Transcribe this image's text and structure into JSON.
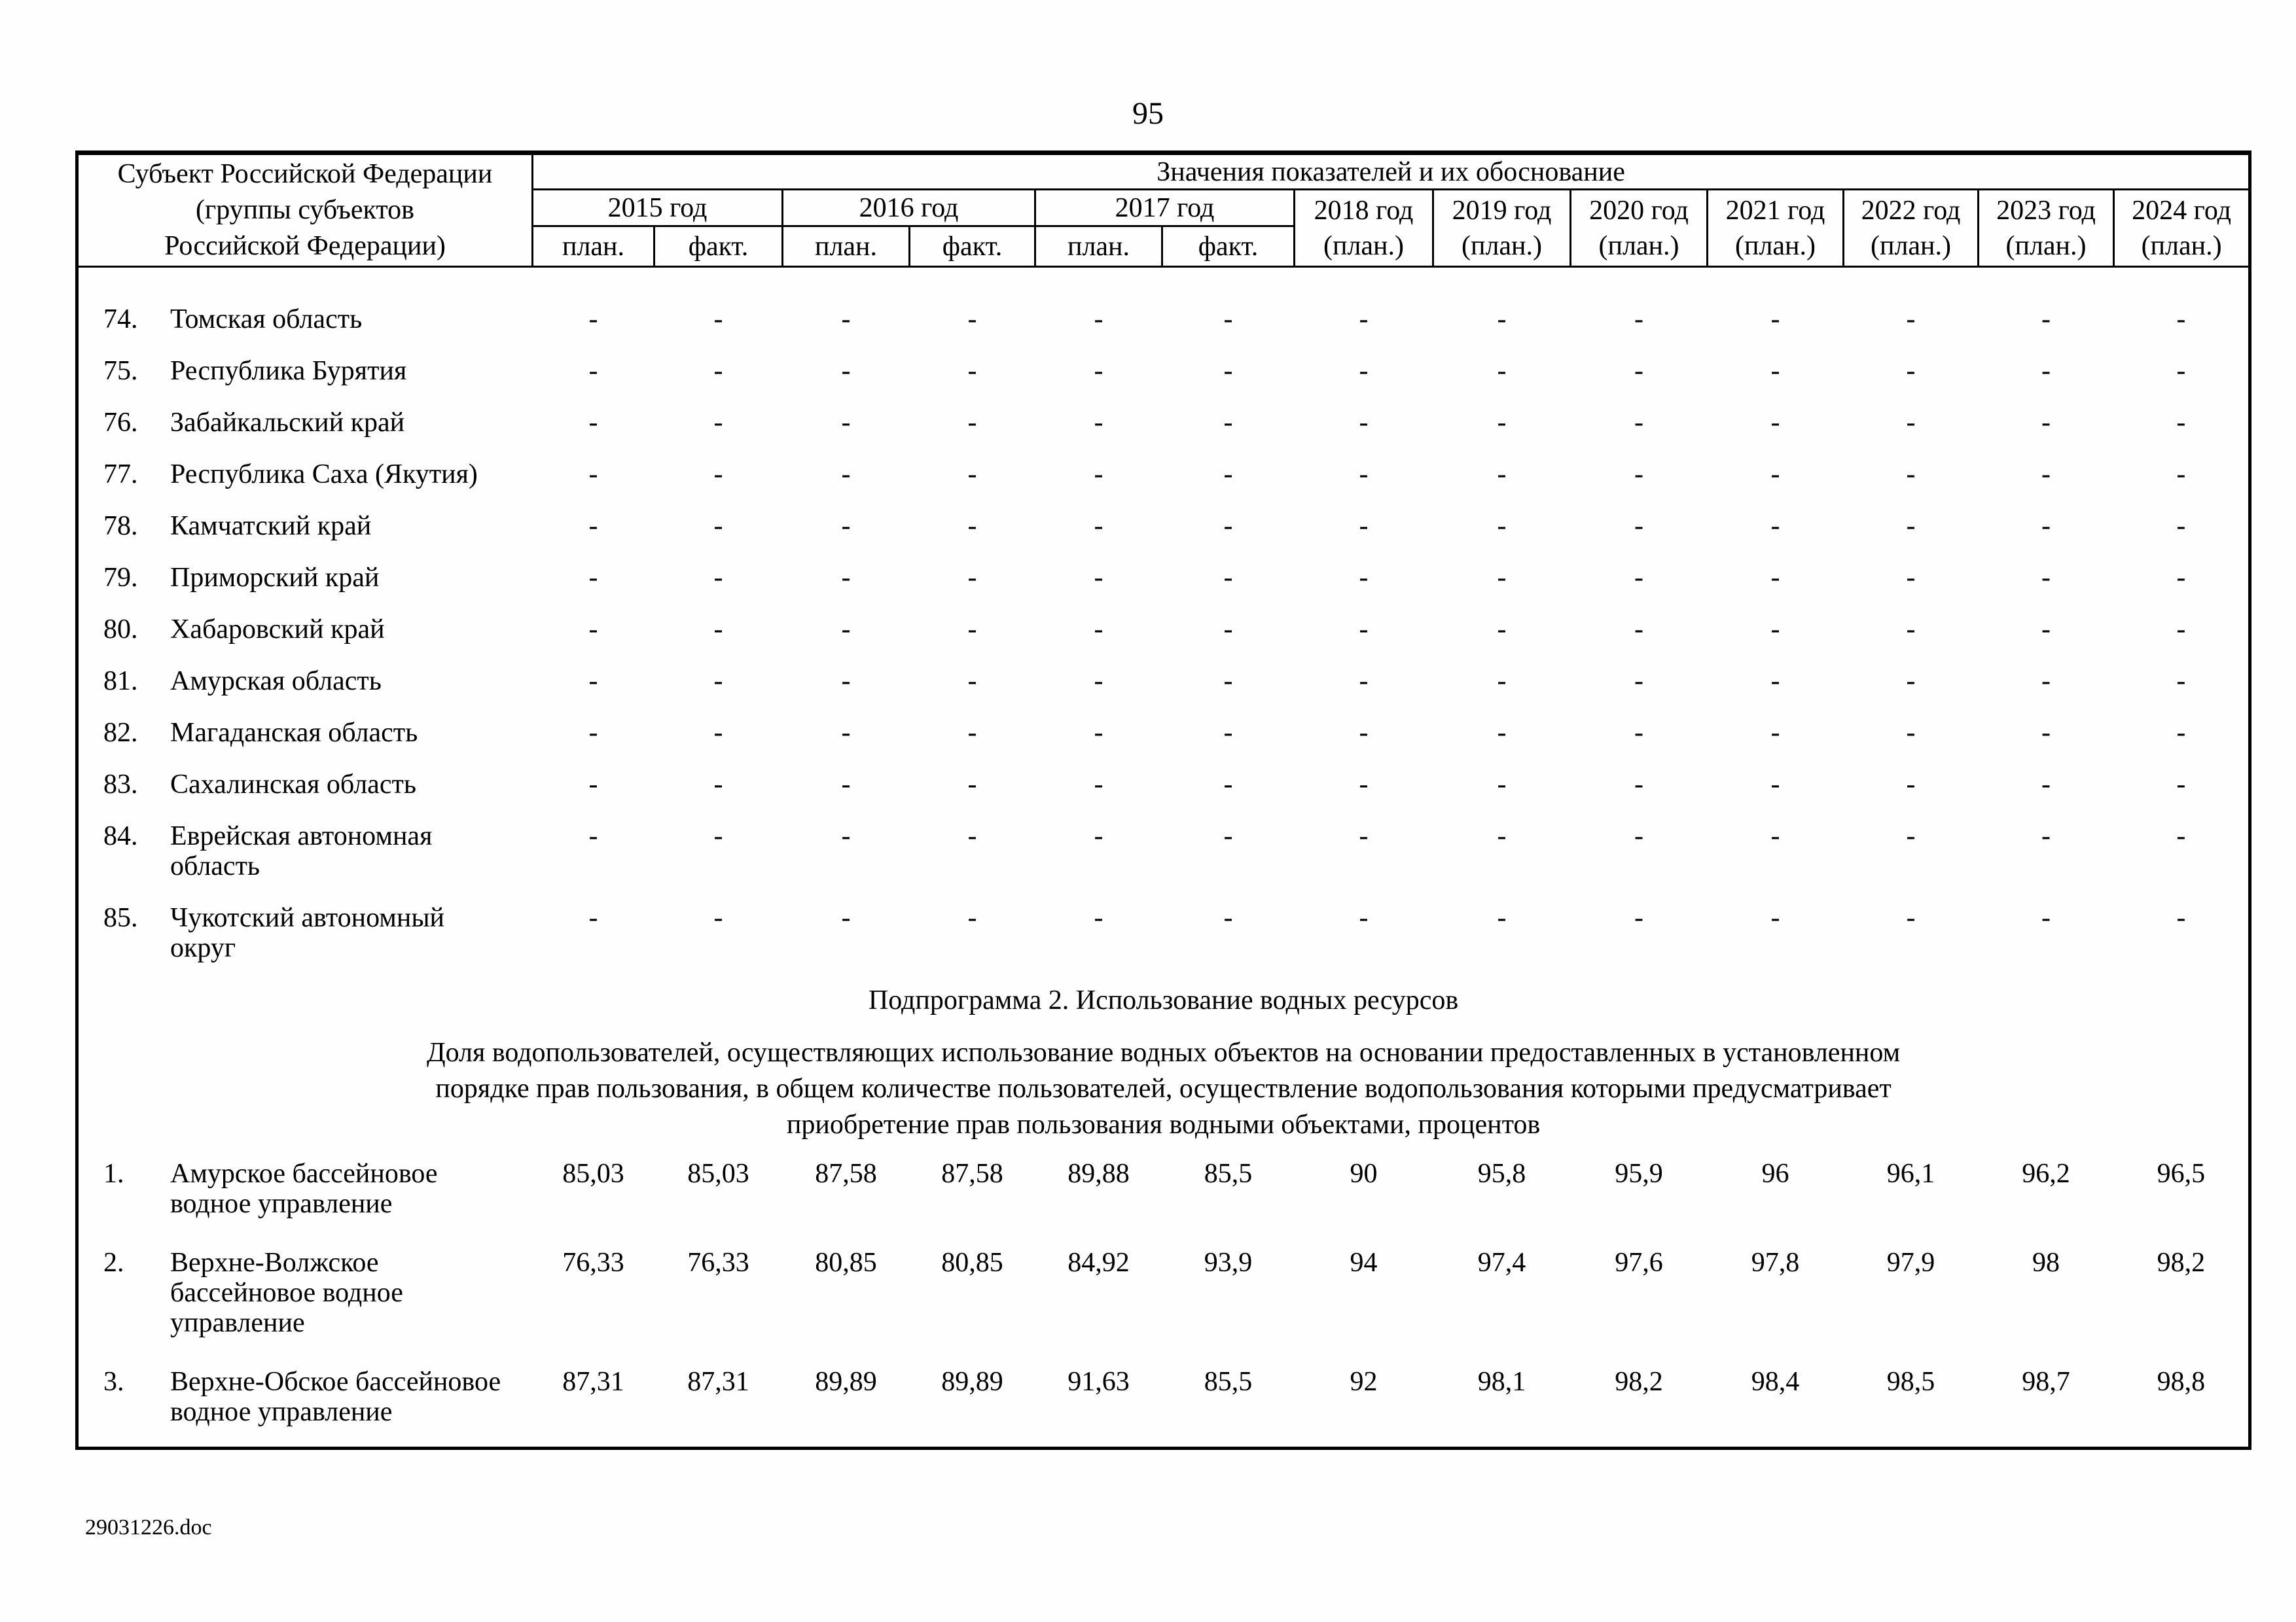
{
  "page": {
    "number": "95",
    "footer_filename": "29031226.doc"
  },
  "table": {
    "subject_header": "Субъект Российской Федерации\n(группы субъектов\nРоссийской Федерации)",
    "values_header": "Значения показателей и их обоснование",
    "year_groups": [
      {
        "label": "2015 год",
        "subs": [
          "план.",
          "факт."
        ]
      },
      {
        "label": "2016 год",
        "subs": [
          "план.",
          "факт."
        ]
      },
      {
        "label": "2017 год",
        "subs": [
          "план.",
          "факт."
        ]
      },
      {
        "label": "2018 год",
        "subs": [
          "(план.)"
        ]
      },
      {
        "label": "2019 год",
        "subs": [
          "(план.)"
        ]
      },
      {
        "label": "2020 год",
        "subs": [
          "(план.)"
        ]
      },
      {
        "label": "2021 год",
        "subs": [
          "(план.)"
        ]
      },
      {
        "label": "2022 год",
        "subs": [
          "(план.)"
        ]
      },
      {
        "label": "2023 год",
        "subs": [
          "(план.)"
        ]
      },
      {
        "label": "2024 год",
        "subs": [
          "(план.)"
        ]
      }
    ],
    "region_rows": [
      {
        "num": "74.",
        "name": "Томская область",
        "values": [
          "-",
          "-",
          "-",
          "-",
          "-",
          "-",
          "-",
          "-",
          "-",
          "-",
          "-",
          "-",
          "-"
        ]
      },
      {
        "num": "75.",
        "name": "Республика Бурятия",
        "values": [
          "-",
          "-",
          "-",
          "-",
          "-",
          "-",
          "-",
          "-",
          "-",
          "-",
          "-",
          "-",
          "-"
        ]
      },
      {
        "num": "76.",
        "name": "Забайкальский край",
        "values": [
          "-",
          "-",
          "-",
          "-",
          "-",
          "-",
          "-",
          "-",
          "-",
          "-",
          "-",
          "-",
          "-"
        ]
      },
      {
        "num": "77.",
        "name": "Республика Саха (Якутия)",
        "values": [
          "-",
          "-",
          "-",
          "-",
          "-",
          "-",
          "-",
          "-",
          "-",
          "-",
          "-",
          "-",
          "-"
        ]
      },
      {
        "num": "78.",
        "name": "Камчатский край",
        "values": [
          "-",
          "-",
          "-",
          "-",
          "-",
          "-",
          "-",
          "-",
          "-",
          "-",
          "-",
          "-",
          "-"
        ]
      },
      {
        "num": "79.",
        "name": "Приморский край",
        "values": [
          "-",
          "-",
          "-",
          "-",
          "-",
          "-",
          "-",
          "-",
          "-",
          "-",
          "-",
          "-",
          "-"
        ]
      },
      {
        "num": "80.",
        "name": "Хабаровский край",
        "values": [
          "-",
          "-",
          "-",
          "-",
          "-",
          "-",
          "-",
          "-",
          "-",
          "-",
          "-",
          "-",
          "-"
        ]
      },
      {
        "num": "81.",
        "name": "Амурская область",
        "values": [
          "-",
          "-",
          "-",
          "-",
          "-",
          "-",
          "-",
          "-",
          "-",
          "-",
          "-",
          "-",
          "-"
        ]
      },
      {
        "num": "82.",
        "name": "Магаданская область",
        "values": [
          "-",
          "-",
          "-",
          "-",
          "-",
          "-",
          "-",
          "-",
          "-",
          "-",
          "-",
          "-",
          "-"
        ]
      },
      {
        "num": "83.",
        "name": "Сахалинская область",
        "values": [
          "-",
          "-",
          "-",
          "-",
          "-",
          "-",
          "-",
          "-",
          "-",
          "-",
          "-",
          "-",
          "-"
        ]
      },
      {
        "num": "84.",
        "name": "Еврейская автономная\nобласть",
        "values": [
          "-",
          "-",
          "-",
          "-",
          "-",
          "-",
          "-",
          "-",
          "-",
          "-",
          "-",
          "-",
          "-"
        ]
      },
      {
        "num": "85.",
        "name": "Чукотский автономный\nокруг",
        "values": [
          "-",
          "-",
          "-",
          "-",
          "-",
          "-",
          "-",
          "-",
          "-",
          "-",
          "-",
          "-",
          "-"
        ]
      }
    ],
    "subprogram_heading": "Подпрограмма 2. Использование водных ресурсов",
    "indicator_title": "Доля водопользователей, осуществляющих использование водных объектов на основании предоставленных в установленном\nпорядке прав пользования, в общем количестве пользователей, осуществление водопользования которыми предусматривает\nприобретение прав пользования водными объектами, процентов",
    "basin_rows": [
      {
        "num": "1.",
        "name": "Амурское бассейновое\nводное управление",
        "values": [
          "85,03",
          "85,03",
          "87,58",
          "87,58",
          "89,88",
          "85,5",
          "90",
          "95,8",
          "95,9",
          "96",
          "96,1",
          "96,2",
          "96,5"
        ]
      },
      {
        "num": "2.",
        "name": "Верхне-Волжское\nбассейновое водное\nуправление",
        "values": [
          "76,33",
          "76,33",
          "80,85",
          "80,85",
          "84,92",
          "93,9",
          "94",
          "97,4",
          "97,6",
          "97,8",
          "97,9",
          "98",
          "98,2"
        ]
      },
      {
        "num": "3.",
        "name": "Верхне-Обское бассейновое\nводное управление",
        "values": [
          "87,31",
          "87,31",
          "89,89",
          "89,89",
          "91,63",
          "85,5",
          "92",
          "98,1",
          "98,2",
          "98,4",
          "98,5",
          "98,7",
          "98,8"
        ]
      }
    ]
  }
}
